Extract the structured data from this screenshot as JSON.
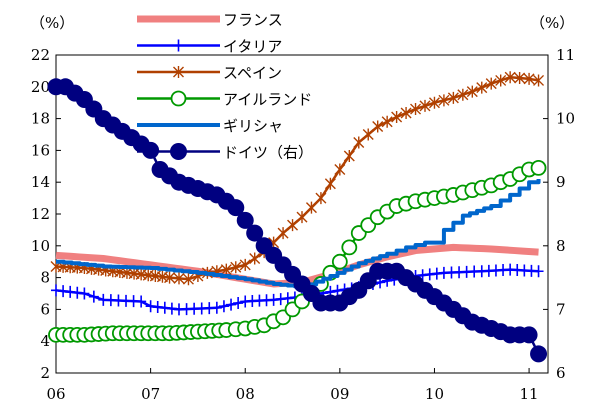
{
  "chart_data": {
    "type": "line",
    "left_unit": "（%）",
    "right_unit": "（%）",
    "x_ticks": [
      "06",
      "07",
      "08",
      "09",
      "10",
      "11"
    ],
    "xlim": [
      2006.0,
      2011.2
    ],
    "left_ylim": [
      2,
      22
    ],
    "left_ticks": [
      2,
      4,
      6,
      8,
      10,
      12,
      14,
      16,
      18,
      20,
      22
    ],
    "right_ylim": [
      6,
      11
    ],
    "right_ticks": [
      6,
      7,
      8,
      9,
      10,
      11
    ],
    "legend_position": "top-center",
    "series": [
      {
        "name": "フランス",
        "axis": "left",
        "color": "#f08080",
        "style": "thick",
        "points": [
          [
            2006.0,
            9.4
          ],
          [
            2006.5,
            9.2
          ],
          [
            2007.0,
            8.8
          ],
          [
            2007.5,
            8.4
          ],
          [
            2008.0,
            7.9
          ],
          [
            2008.3,
            7.6
          ],
          [
            2008.6,
            7.7
          ],
          [
            2008.9,
            8.2
          ],
          [
            2009.2,
            8.8
          ],
          [
            2009.5,
            9.3
          ],
          [
            2009.8,
            9.7
          ],
          [
            2010.2,
            9.9
          ],
          [
            2010.6,
            9.8
          ],
          [
            2011.1,
            9.6
          ]
        ]
      },
      {
        "name": "イタリア",
        "axis": "left",
        "color": "#0000ff",
        "style": "plus",
        "points": [
          [
            2006.0,
            7.2
          ],
          [
            2006.3,
            7.0
          ],
          [
            2006.5,
            6.6
          ],
          [
            2006.9,
            6.5
          ],
          [
            2007.0,
            6.2
          ],
          [
            2007.3,
            6.0
          ],
          [
            2007.7,
            6.1
          ],
          [
            2008.0,
            6.5
          ],
          [
            2008.3,
            6.6
          ],
          [
            2008.6,
            6.8
          ],
          [
            2008.9,
            7.1
          ],
          [
            2009.2,
            7.4
          ],
          [
            2009.5,
            7.8
          ],
          [
            2009.8,
            8.1
          ],
          [
            2010.1,
            8.3
          ],
          [
            2010.5,
            8.4
          ],
          [
            2010.8,
            8.5
          ],
          [
            2011.1,
            8.4
          ]
        ]
      },
      {
        "name": "スペイン",
        "axis": "left",
        "color": "#b04000",
        "style": "star",
        "points": [
          [
            2006.0,
            8.7
          ],
          [
            2006.3,
            8.6
          ],
          [
            2006.6,
            8.4
          ],
          [
            2006.9,
            8.2
          ],
          [
            2007.2,
            8.0
          ],
          [
            2007.4,
            7.9
          ],
          [
            2007.6,
            8.3
          ],
          [
            2007.8,
            8.5
          ],
          [
            2008.0,
            8.8
          ],
          [
            2008.2,
            9.6
          ],
          [
            2008.4,
            10.8
          ],
          [
            2008.6,
            11.8
          ],
          [
            2008.8,
            13.0
          ],
          [
            2009.0,
            14.8
          ],
          [
            2009.2,
            16.5
          ],
          [
            2009.4,
            17.5
          ],
          [
            2009.6,
            18.1
          ],
          [
            2009.8,
            18.6
          ],
          [
            2010.0,
            19.0
          ],
          [
            2010.2,
            19.3
          ],
          [
            2010.4,
            19.7
          ],
          [
            2010.6,
            20.2
          ],
          [
            2010.8,
            20.6
          ],
          [
            2011.0,
            20.5
          ],
          [
            2011.1,
            20.4
          ]
        ]
      },
      {
        "name": "アイルランド",
        "axis": "left",
        "color": "#009900",
        "style": "circle-open",
        "points": [
          [
            2006.0,
            4.4
          ],
          [
            2006.3,
            4.4
          ],
          [
            2006.6,
            4.5
          ],
          [
            2006.9,
            4.5
          ],
          [
            2007.2,
            4.5
          ],
          [
            2007.5,
            4.6
          ],
          [
            2007.8,
            4.7
          ],
          [
            2008.0,
            4.8
          ],
          [
            2008.2,
            5.0
          ],
          [
            2008.4,
            5.5
          ],
          [
            2008.6,
            6.5
          ],
          [
            2008.8,
            7.6
          ],
          [
            2009.0,
            9.0
          ],
          [
            2009.2,
            10.8
          ],
          [
            2009.4,
            11.8
          ],
          [
            2009.6,
            12.5
          ],
          [
            2009.8,
            12.8
          ],
          [
            2010.0,
            13.0
          ],
          [
            2010.2,
            13.2
          ],
          [
            2010.4,
            13.5
          ],
          [
            2010.6,
            13.8
          ],
          [
            2010.8,
            14.2
          ],
          [
            2011.0,
            14.8
          ],
          [
            2011.1,
            14.9
          ]
        ]
      },
      {
        "name": "ギリシャ",
        "axis": "left",
        "color": "#0066cc",
        "style": "step",
        "points": [
          [
            2006.0,
            9.0
          ],
          [
            2006.5,
            8.7
          ],
          [
            2007.0,
            8.6
          ],
          [
            2007.5,
            8.3
          ],
          [
            2008.0,
            7.9
          ],
          [
            2008.3,
            7.6
          ],
          [
            2008.6,
            7.4
          ],
          [
            2008.9,
            8.1
          ],
          [
            2009.2,
            8.9
          ],
          [
            2009.5,
            9.5
          ],
          [
            2009.7,
            9.9
          ],
          [
            2009.9,
            10.2
          ],
          [
            2010.0,
            10.2
          ],
          [
            2010.1,
            11.0
          ],
          [
            2010.3,
            11.9
          ],
          [
            2010.6,
            12.5
          ],
          [
            2010.8,
            13.2
          ],
          [
            2011.0,
            14.0
          ],
          [
            2011.1,
            14.2
          ]
        ]
      },
      {
        "name": "ドイツ（右）",
        "axis": "right",
        "color": "#000080",
        "style": "circle-filled",
        "points": [
          [
            2006.0,
            10.5
          ],
          [
            2006.1,
            10.5
          ],
          [
            2006.3,
            10.3
          ],
          [
            2006.5,
            10.0
          ],
          [
            2006.7,
            9.8
          ],
          [
            2006.9,
            9.6
          ],
          [
            2007.0,
            9.5
          ],
          [
            2007.1,
            9.2
          ],
          [
            2007.3,
            9.0
          ],
          [
            2007.5,
            8.9
          ],
          [
            2007.7,
            8.8
          ],
          [
            2007.9,
            8.6
          ],
          [
            2008.0,
            8.4
          ],
          [
            2008.2,
            8.0
          ],
          [
            2008.4,
            7.7
          ],
          [
            2008.6,
            7.4
          ],
          [
            2008.8,
            7.1
          ],
          [
            2009.0,
            7.1
          ],
          [
            2009.2,
            7.3
          ],
          [
            2009.4,
            7.6
          ],
          [
            2009.6,
            7.6
          ],
          [
            2009.8,
            7.4
          ],
          [
            2010.0,
            7.2
          ],
          [
            2010.2,
            7.0
          ],
          [
            2010.4,
            6.8
          ],
          [
            2010.6,
            6.7
          ],
          [
            2010.8,
            6.6
          ],
          [
            2011.0,
            6.6
          ],
          [
            2011.1,
            6.3
          ]
        ]
      }
    ]
  }
}
